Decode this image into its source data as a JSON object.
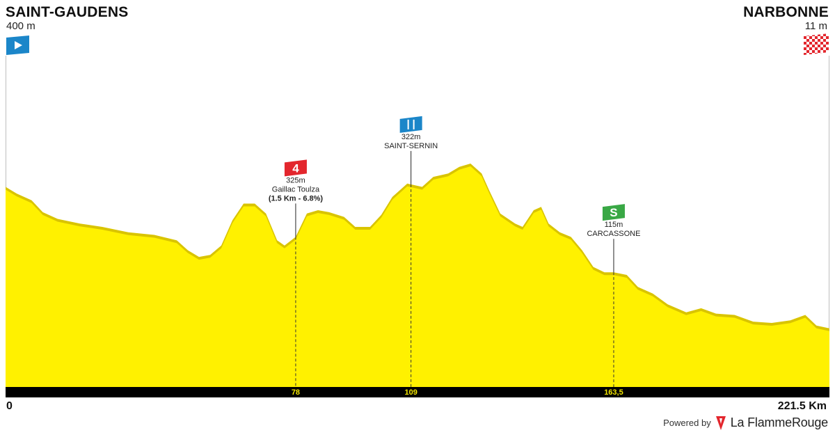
{
  "stage": {
    "start": {
      "name": "SAINT-GAUDENS",
      "altitude": "400 m"
    },
    "finish": {
      "name": "NARBONNE",
      "altitude": "11 m"
    },
    "distance_start": "0",
    "distance_end": "221.5 Km"
  },
  "branding": {
    "powered_by": "Powered by",
    "brand_name": "La FlammeRouge"
  },
  "colors": {
    "profile_fill": "#fff100",
    "profile_shade": "#d9c400",
    "axis_bar": "#000000",
    "km_label": "#f2e600",
    "climb_marker": "#e3262d",
    "feed_marker": "#1b86c9",
    "sprint_marker": "#39a845",
    "start_flag": "#1b86c9",
    "finish_flag": "#e3262d"
  },
  "chart_data": {
    "type": "area",
    "xlabel": "",
    "ylabel": "",
    "xlim": [
      0,
      221.5
    ],
    "ylim": [
      0,
      480
    ],
    "points": [
      [
        0,
        300
      ],
      [
        3,
        290
      ],
      [
        7,
        280
      ],
      [
        10,
        262
      ],
      [
        14,
        252
      ],
      [
        20,
        245
      ],
      [
        26,
        240
      ],
      [
        33,
        232
      ],
      [
        40,
        228
      ],
      [
        46,
        220
      ],
      [
        49,
        205
      ],
      [
        52,
        195
      ],
      [
        55,
        198
      ],
      [
        58,
        212
      ],
      [
        61,
        250
      ],
      [
        64,
        275
      ],
      [
        67,
        275
      ],
      [
        70,
        260
      ],
      [
        73,
        220
      ],
      [
        75,
        212
      ],
      [
        78,
        225
      ],
      [
        81,
        260
      ],
      [
        84,
        265
      ],
      [
        87,
        262
      ],
      [
        91,
        255
      ],
      [
        94,
        240
      ],
      [
        98,
        240
      ],
      [
        101,
        258
      ],
      [
        104,
        285
      ],
      [
        108,
        305
      ],
      [
        112,
        300
      ],
      [
        115,
        315
      ],
      [
        119,
        320
      ],
      [
        122,
        330
      ],
      [
        125,
        335
      ],
      [
        128,
        320
      ],
      [
        130,
        295
      ],
      [
        133,
        260
      ],
      [
        137,
        245
      ],
      [
        139,
        240
      ],
      [
        142,
        265
      ],
      [
        144,
        270
      ],
      [
        146,
        245
      ],
      [
        149,
        232
      ],
      [
        152,
        225
      ],
      [
        155,
        205
      ],
      [
        158,
        180
      ],
      [
        161,
        172
      ],
      [
        163.5,
        172
      ],
      [
        167,
        168
      ],
      [
        170,
        150
      ],
      [
        174,
        140
      ],
      [
        178,
        124
      ],
      [
        183,
        112
      ],
      [
        187,
        118
      ],
      [
        191,
        110
      ],
      [
        196,
        108
      ],
      [
        201,
        98
      ],
      [
        206,
        96
      ],
      [
        211,
        100
      ],
      [
        215,
        108
      ],
      [
        218,
        92
      ],
      [
        221.5,
        88
      ]
    ],
    "pois": [
      {
        "km": 78,
        "km_label": "78",
        "type": "climb",
        "badge": "4",
        "altitude_label": "325m",
        "name": "Gaillac Toulza",
        "detail": "(1.5 Km - 6.8%)"
      },
      {
        "km": 109,
        "km_label": "109",
        "type": "feed",
        "badge": "feed-zone-icon",
        "altitude_label": "322m",
        "name": "SAINT-SERNIN",
        "detail": ""
      },
      {
        "km": 163.5,
        "km_label": "163,5",
        "type": "sprint",
        "badge": "S",
        "altitude_label": "115m",
        "name": "CARCASSONE",
        "detail": ""
      }
    ]
  }
}
